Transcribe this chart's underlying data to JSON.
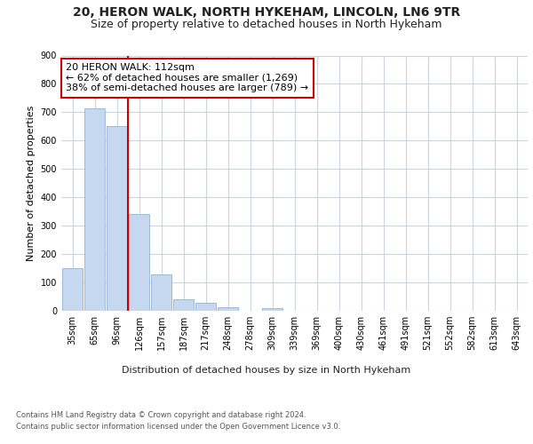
{
  "title1": "20, HERON WALK, NORTH HYKEHAM, LINCOLN, LN6 9TR",
  "title2": "Size of property relative to detached houses in North Hykeham",
  "xlabel": "Distribution of detached houses by size in North Hykeham",
  "ylabel": "Number of detached properties",
  "categories": [
    "35sqm",
    "65sqm",
    "96sqm",
    "126sqm",
    "157sqm",
    "187sqm",
    "217sqm",
    "248sqm",
    "278sqm",
    "309sqm",
    "339sqm",
    "369sqm",
    "400sqm",
    "430sqm",
    "461sqm",
    "491sqm",
    "521sqm",
    "552sqm",
    "582sqm",
    "613sqm",
    "643sqm"
  ],
  "values": [
    150,
    715,
    650,
    340,
    127,
    40,
    28,
    12,
    0,
    8,
    0,
    0,
    0,
    0,
    0,
    0,
    0,
    0,
    0,
    0,
    0
  ],
  "bar_color": "#c5d8f0",
  "bar_edge_color": "#a0b8d8",
  "vline_color": "#cc0000",
  "annotation_text": "20 HERON WALK: 112sqm\n← 62% of detached houses are smaller (1,269)\n38% of semi-detached houses are larger (789) →",
  "annotation_box_color": "#ffffff",
  "annotation_box_edge": "#cc0000",
  "ylim": [
    0,
    900
  ],
  "yticks": [
    0,
    100,
    200,
    300,
    400,
    500,
    600,
    700,
    800,
    900
  ],
  "footer1": "Contains HM Land Registry data © Crown copyright and database right 2024.",
  "footer2": "Contains public sector information licensed under the Open Government Licence v3.0.",
  "bg_color": "#ffffff",
  "grid_color": "#c8d4e0",
  "title1_fontsize": 10,
  "title2_fontsize": 9,
  "tick_fontsize": 7,
  "ylabel_fontsize": 8,
  "xlabel_fontsize": 8,
  "footer_fontsize": 6,
  "ann_fontsize": 8
}
